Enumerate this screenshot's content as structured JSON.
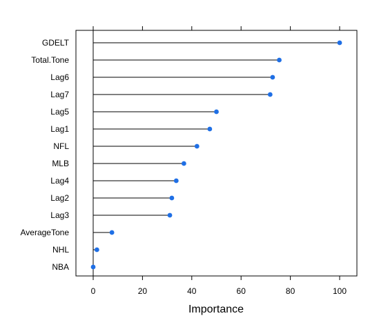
{
  "chart_data": {
    "type": "dotplot",
    "title": "",
    "xlabel": "Importance",
    "ylabel": "",
    "xlim": [
      -7,
      107
    ],
    "xticks": [
      0,
      20,
      40,
      60,
      80,
      100
    ],
    "grid": false,
    "legend": "none",
    "categories": [
      "GDELT",
      "Total.Tone",
      "Lag6",
      "Lag7",
      "Lag5",
      "Lag1",
      "NFL",
      "MLB",
      "Lag4",
      "Lag2",
      "Lag3",
      "AverageTone",
      "NHL",
      "NBA"
    ],
    "values": [
      100,
      75.5,
      72.8,
      71.8,
      50,
      47.3,
      42.1,
      36.8,
      33.7,
      31.9,
      31.1,
      7.6,
      1.5,
      0
    ],
    "colors": {
      "point": "#1f6fe5",
      "stem": "#000000",
      "frame": "#000000"
    }
  }
}
